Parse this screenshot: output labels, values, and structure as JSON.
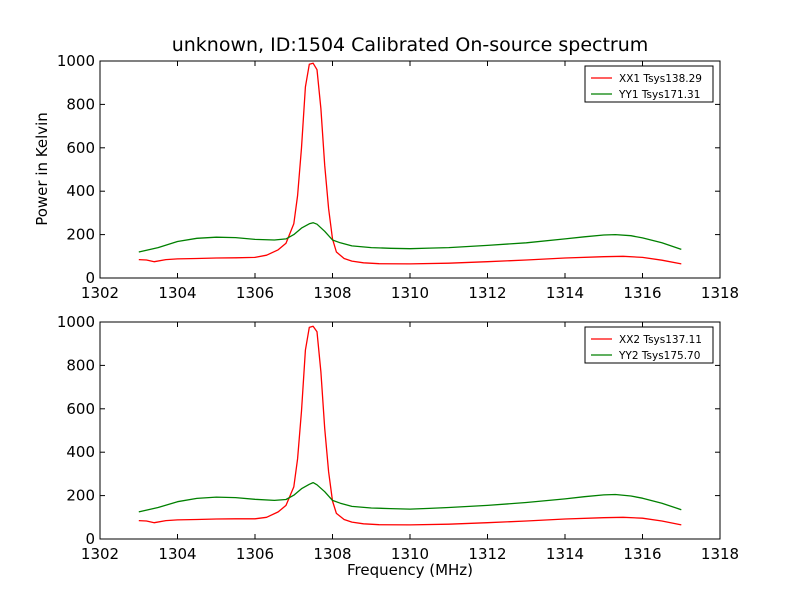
{
  "chart_data": [
    {
      "type": "line",
      "title": "unknown, ID:1504 Calibrated On-source spectrum",
      "xlabel": "",
      "ylabel": "Power in Kelvin",
      "xlim": [
        1302,
        1318
      ],
      "ylim": [
        0,
        1000
      ],
      "xticks": [
        "1302",
        "1304",
        "1306",
        "1308",
        "1310",
        "1312",
        "1314",
        "1316",
        "1318"
      ],
      "yticks": [
        "0",
        "200",
        "400",
        "600",
        "800",
        "1000"
      ],
      "legend_position": "top-right",
      "grid": false,
      "series": [
        {
          "name": "XX1 Tsys138.29",
          "color": "#ff0000",
          "x": [
            1303.0,
            1303.2,
            1303.4,
            1303.7,
            1304.0,
            1304.5,
            1305.0,
            1305.5,
            1306.0,
            1306.3,
            1306.6,
            1306.8,
            1307.0,
            1307.1,
            1307.2,
            1307.3,
            1307.4,
            1307.5,
            1307.6,
            1307.7,
            1307.8,
            1307.9,
            1308.0,
            1308.1,
            1308.3,
            1308.5,
            1308.8,
            1309.2,
            1310.0,
            1311.0,
            1312.0,
            1313.0,
            1314.0,
            1315.0,
            1315.5,
            1316.0,
            1316.5,
            1317.0
          ],
          "y": [
            85,
            83,
            75,
            85,
            88,
            90,
            92,
            93,
            95,
            105,
            130,
            160,
            250,
            380,
            600,
            880,
            985,
            990,
            960,
            780,
            520,
            320,
            180,
            120,
            90,
            78,
            70,
            66,
            65,
            68,
            75,
            83,
            92,
            98,
            100,
            95,
            82,
            65
          ]
        },
        {
          "name": "YY1 Tsys171.31",
          "color": "#008000",
          "x": [
            1303.0,
            1303.5,
            1304.0,
            1304.5,
            1305.0,
            1305.5,
            1306.0,
            1306.5,
            1306.8,
            1307.0,
            1307.2,
            1307.4,
            1307.5,
            1307.6,
            1307.8,
            1308.0,
            1308.2,
            1308.5,
            1309.0,
            1309.5,
            1310.0,
            1310.5,
            1311.0,
            1312.0,
            1313.0,
            1314.0,
            1314.5,
            1315.0,
            1315.3,
            1315.7,
            1316.0,
            1316.5,
            1317.0
          ],
          "y": [
            120,
            140,
            168,
            183,
            188,
            186,
            178,
            175,
            180,
            200,
            230,
            250,
            255,
            248,
            215,
            175,
            162,
            148,
            140,
            137,
            135,
            138,
            140,
            150,
            162,
            180,
            190,
            198,
            200,
            195,
            185,
            162,
            132
          ]
        }
      ]
    },
    {
      "type": "line",
      "title": "",
      "xlabel": "Frequency (MHz)",
      "ylabel": "",
      "xlim": [
        1302,
        1318
      ],
      "ylim": [
        0,
        1000
      ],
      "xticks": [
        "1302",
        "1304",
        "1306",
        "1308",
        "1310",
        "1312",
        "1314",
        "1316",
        "1318"
      ],
      "yticks": [
        "0",
        "200",
        "400",
        "600",
        "800",
        "1000"
      ],
      "legend_position": "top-right",
      "grid": false,
      "series": [
        {
          "name": "XX2 Tsys137.11",
          "color": "#ff0000",
          "x": [
            1303.0,
            1303.2,
            1303.4,
            1303.7,
            1304.0,
            1304.5,
            1305.0,
            1305.5,
            1306.0,
            1306.3,
            1306.6,
            1306.8,
            1307.0,
            1307.1,
            1307.2,
            1307.3,
            1307.4,
            1307.5,
            1307.6,
            1307.7,
            1307.8,
            1307.9,
            1308.0,
            1308.1,
            1308.3,
            1308.5,
            1308.8,
            1309.2,
            1310.0,
            1311.0,
            1312.0,
            1313.0,
            1314.0,
            1315.0,
            1315.5,
            1316.0,
            1316.5,
            1317.0
          ],
          "y": [
            85,
            83,
            75,
            85,
            88,
            90,
            92,
            93,
            93,
            100,
            125,
            155,
            240,
            370,
            590,
            870,
            975,
            980,
            955,
            770,
            510,
            310,
            175,
            118,
            90,
            78,
            70,
            66,
            65,
            68,
            75,
            83,
            92,
            98,
            100,
            96,
            83,
            65
          ]
        },
        {
          "name": "YY2 Tsys175.70",
          "color": "#008000",
          "x": [
            1303.0,
            1303.5,
            1304.0,
            1304.5,
            1305.0,
            1305.5,
            1306.0,
            1306.5,
            1306.8,
            1307.0,
            1307.2,
            1307.4,
            1307.5,
            1307.6,
            1307.8,
            1308.0,
            1308.2,
            1308.5,
            1309.0,
            1309.5,
            1310.0,
            1310.5,
            1311.0,
            1312.0,
            1313.0,
            1314.0,
            1314.5,
            1315.0,
            1315.3,
            1315.7,
            1316.0,
            1316.5,
            1317.0
          ],
          "y": [
            125,
            145,
            172,
            187,
            193,
            191,
            183,
            178,
            182,
            202,
            232,
            252,
            260,
            250,
            218,
            178,
            165,
            150,
            143,
            140,
            138,
            141,
            145,
            155,
            168,
            185,
            195,
            203,
            205,
            198,
            188,
            165,
            135
          ]
        }
      ]
    }
  ]
}
